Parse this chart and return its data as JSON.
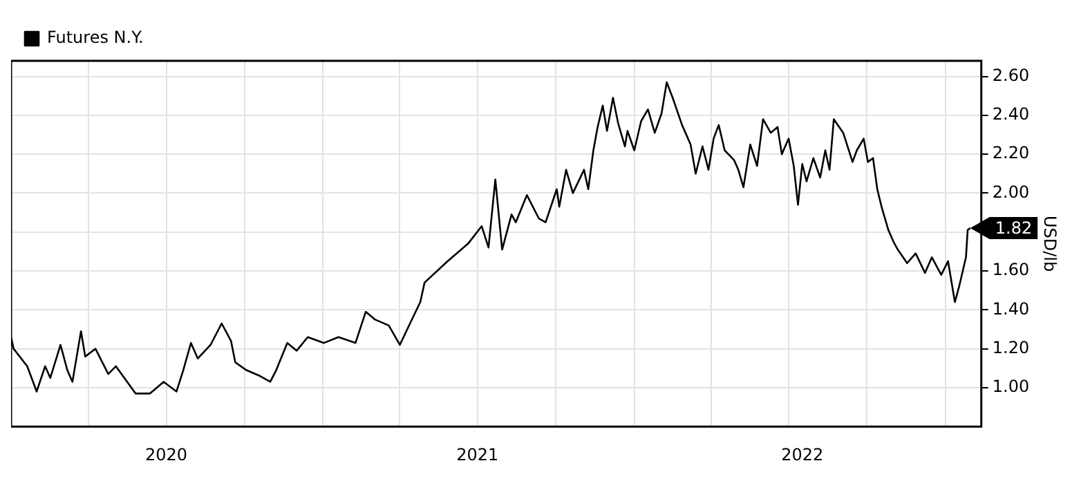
{
  "chart_data": {
    "type": "line",
    "ylabel": "USD/lb",
    "legend": "top left",
    "grid": true,
    "marker": "none",
    "line_style": "solid",
    "xlim": [
      "2020-01-01",
      "2023-02-12"
    ],
    "ylim": [
      0.8,
      2.68
    ],
    "xticks": [
      {
        "value": "2020-04-01",
        "label": null
      },
      {
        "value": "2020-07-01",
        "label": null
      },
      {
        "value": "2020-10-01",
        "label": null
      },
      {
        "value": "2021-01-01",
        "label": null
      },
      {
        "value": "2021-04-01",
        "label": null
      },
      {
        "value": "2021-07-01",
        "label": null
      },
      {
        "value": "2021-10-01",
        "label": null
      },
      {
        "value": "2022-01-01",
        "label": null
      },
      {
        "value": "2022-04-01",
        "label": null
      },
      {
        "value": "2022-07-01",
        "label": null
      },
      {
        "value": "2022-10-01",
        "label": null
      },
      {
        "value": "2023-01-01",
        "label": null
      },
      {
        "value": "2020-07-01",
        "label": "2020"
      },
      {
        "value": "2021-07-01",
        "label": "2021"
      },
      {
        "value": "2022-07-17",
        "label": "2022"
      }
    ],
    "yticks": [
      {
        "value": 1,
        "label": "1.00"
      },
      {
        "value": 1.2,
        "label": "1.20"
      },
      {
        "value": 1.4,
        "label": "1.40"
      },
      {
        "value": 1.6,
        "label": "1.60"
      },
      {
        "value": 1.8,
        "label": null
      },
      {
        "value": 2,
        "label": "2.00"
      },
      {
        "value": 2.2,
        "label": "2.20"
      },
      {
        "value": 2.4,
        "label": "2.40"
      },
      {
        "value": 2.6,
        "label": "2.60"
      }
    ],
    "annotations": [
      {
        "text": "1.82",
        "x": "2023-01-30",
        "y": 1.82
      }
    ],
    "series": [
      {
        "name": "Futures N.Y.",
        "color": "#000000",
        "x": [
          "2020-01-01",
          "2020-01-04",
          "2020-01-20",
          "2020-01-31",
          "2020-02-10",
          "2020-02-16",
          "2020-02-28",
          "2020-03-07",
          "2020-03-13",
          "2020-03-23",
          "2020-03-28",
          "2020-04-09",
          "2020-04-24",
          "2020-05-03",
          "2020-05-26",
          "2020-06-12",
          "2020-06-28",
          "2020-07-13",
          "2020-07-21",
          "2020-07-30",
          "2020-08-07",
          "2020-08-22",
          "2020-09-04",
          "2020-09-15",
          "2020-09-20",
          "2020-10-03",
          "2020-10-19",
          "2020-10-31",
          "2020-11-07",
          "2020-11-20",
          "2020-12-01",
          "2020-12-14",
          "2021-01-02",
          "2021-01-19",
          "2021-02-08",
          "2021-02-20",
          "2021-03-03",
          "2021-03-19",
          "2021-04-01",
          "2021-04-14",
          "2021-04-25",
          "2021-04-30",
          "2021-05-27",
          "2021-06-20",
          "2021-07-06",
          "2021-07-14",
          "2021-07-22",
          "2021-07-30",
          "2021-08-10",
          "2021-08-15",
          "2021-08-28",
          "2021-09-11",
          "2021-09-19",
          "2021-10-02",
          "2021-10-05",
          "2021-10-13",
          "2021-10-21",
          "2021-11-03",
          "2021-11-08",
          "2021-11-14",
          "2021-11-19",
          "2021-11-25",
          "2021-11-30",
          "2021-12-07",
          "2021-12-13",
          "2021-12-21",
          "2021-12-24",
          "2022-01-01",
          "2022-01-09",
          "2022-01-17",
          "2022-01-25",
          "2022-02-02",
          "2022-02-08",
          "2022-02-15",
          "2022-02-26",
          "2022-03-08",
          "2022-03-14",
          "2022-03-22",
          "2022-03-29",
          "2022-04-04",
          "2022-04-10",
          "2022-04-17",
          "2022-04-28",
          "2022-05-03",
          "2022-05-09",
          "2022-05-17",
          "2022-05-25",
          "2022-06-01",
          "2022-06-10",
          "2022-06-18",
          "2022-06-23",
          "2022-07-01",
          "2022-07-07",
          "2022-07-12",
          "2022-07-17",
          "2022-07-22",
          "2022-07-30",
          "2022-08-07",
          "2022-08-13",
          "2022-08-18",
          "2022-08-23",
          "2022-09-03",
          "2022-09-14",
          "2022-09-19",
          "2022-09-27",
          "2022-10-02",
          "2022-10-08",
          "2022-10-13",
          "2022-10-18",
          "2022-10-26",
          "2022-11-01",
          "2022-11-06",
          "2022-11-17",
          "2022-11-27",
          "2022-12-08",
          "2022-12-16",
          "2022-12-27",
          "2023-01-04",
          "2023-01-12",
          "2023-01-17",
          "2023-01-25",
          "2023-01-27",
          "2023-01-30"
        ],
        "values": [
          1.26,
          1.2,
          1.11,
          0.98,
          1.11,
          1.05,
          1.22,
          1.09,
          1.03,
          1.29,
          1.16,
          1.2,
          1.07,
          1.11,
          0.97,
          0.97,
          1.03,
          0.98,
          1.09,
          1.23,
          1.15,
          1.22,
          1.33,
          1.24,
          1.13,
          1.09,
          1.06,
          1.03,
          1.09,
          1.23,
          1.19,
          1.26,
          1.23,
          1.26,
          1.23,
          1.39,
          1.35,
          1.32,
          1.22,
          1.34,
          1.44,
          1.54,
          1.65,
          1.74,
          1.83,
          1.72,
          2.07,
          1.71,
          1.89,
          1.85,
          1.99,
          1.87,
          1.85,
          2.02,
          1.93,
          2.12,
          2.0,
          2.12,
          2.02,
          2.22,
          2.34,
          2.45,
          2.32,
          2.49,
          2.36,
          2.24,
          2.32,
          2.22,
          2.37,
          2.43,
          2.31,
          2.41,
          2.57,
          2.49,
          2.35,
          2.25,
          2.1,
          2.24,
          2.12,
          2.28,
          2.35,
          2.22,
          2.17,
          2.12,
          2.03,
          2.25,
          2.14,
          2.38,
          2.31,
          2.34,
          2.2,
          2.28,
          2.14,
          1.94,
          2.15,
          2.06,
          2.18,
          2.08,
          2.22,
          2.12,
          2.38,
          2.31,
          2.16,
          2.22,
          2.28,
          2.16,
          2.18,
          2.02,
          1.93,
          1.81,
          1.75,
          1.71,
          1.64,
          1.69,
          1.59,
          1.67,
          1.58,
          1.65,
          1.44,
          1.52,
          1.67,
          1.81,
          1.82
        ]
      }
    ]
  }
}
